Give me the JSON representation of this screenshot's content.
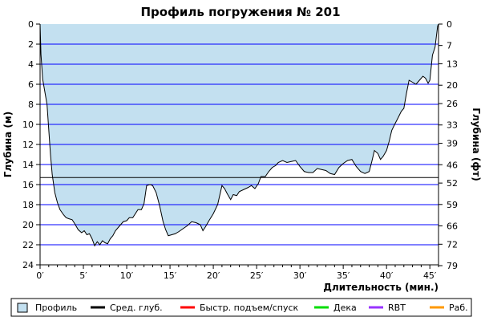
{
  "chart_data": {
    "type": "area",
    "title": "Профиль погружения № 201",
    "xlabel": "Длительность (мин.)",
    "ylabel_left": "Глубина (м)",
    "ylabel_right": "Глубина (фт)",
    "xlim": [
      0,
      46
    ],
    "ylim_m": [
      0,
      24
    ],
    "y_inverted": true,
    "grid": true,
    "legend_position": "bottom",
    "x_ticks": [
      0,
      5,
      10,
      15,
      20,
      25,
      30,
      35,
      40,
      45
    ],
    "x_tick_labels": [
      "0′",
      "5′",
      "10′",
      "15′",
      "20′",
      "25′",
      "30′",
      "35′",
      "40′",
      "45′"
    ],
    "y_left_ticks": [
      0,
      2,
      4,
      6,
      8,
      10,
      12,
      14,
      16,
      18,
      20,
      22,
      24
    ],
    "y_left_tick_labels": [
      "0",
      "2",
      "4",
      "6",
      "8",
      "10",
      "12",
      "14",
      "16",
      "18",
      "20",
      "22",
      "24"
    ],
    "y_right_ticks_ft": [
      0,
      7,
      13,
      20,
      26,
      33,
      39,
      46,
      52,
      59,
      66,
      72,
      79
    ],
    "y_right_tick_labels": [
      "0",
      "7",
      "13",
      "20",
      "26",
      "33",
      "39",
      "46",
      "52",
      "59",
      "66",
      "72",
      "79"
    ],
    "average_depth_m": 15.3,
    "series": [
      {
        "name": "Профиль",
        "color": "#c3e0f0",
        "line_color": "#000000",
        "points": [
          [
            0.0,
            0.0
          ],
          [
            0.1,
            3.0
          ],
          [
            0.3,
            5.5
          ],
          [
            0.6,
            7.0
          ],
          [
            0.8,
            8.0
          ],
          [
            1.0,
            10.5
          ],
          [
            1.2,
            13.0
          ],
          [
            1.4,
            15.0
          ],
          [
            1.7,
            16.8
          ],
          [
            2.0,
            17.8
          ],
          [
            2.3,
            18.5
          ],
          [
            2.7,
            19.0
          ],
          [
            3.0,
            19.3
          ],
          [
            3.3,
            19.4
          ],
          [
            3.7,
            19.5
          ],
          [
            4.0,
            19.9
          ],
          [
            4.4,
            20.5
          ],
          [
            4.8,
            20.8
          ],
          [
            5.1,
            20.6
          ],
          [
            5.4,
            21.0
          ],
          [
            5.7,
            20.9
          ],
          [
            6.0,
            21.4
          ],
          [
            6.3,
            22.1
          ],
          [
            6.6,
            21.7
          ],
          [
            6.9,
            22.0
          ],
          [
            7.2,
            21.6
          ],
          [
            7.5,
            21.8
          ],
          [
            7.8,
            21.9
          ],
          [
            8.1,
            21.4
          ],
          [
            8.4,
            21.1
          ],
          [
            8.7,
            20.6
          ],
          [
            9.0,
            20.3
          ],
          [
            9.3,
            20.0
          ],
          [
            9.6,
            19.7
          ],
          [
            10.0,
            19.6
          ],
          [
            10.3,
            19.3
          ],
          [
            10.7,
            19.3
          ],
          [
            11.0,
            18.9
          ],
          [
            11.3,
            18.5
          ],
          [
            11.7,
            18.5
          ],
          [
            12.0,
            17.9
          ],
          [
            12.3,
            16.1
          ],
          [
            12.7,
            16.0
          ],
          [
            13.0,
            16.1
          ],
          [
            13.4,
            16.8
          ],
          [
            13.8,
            18.1
          ],
          [
            14.2,
            19.7
          ],
          [
            14.5,
            20.5
          ],
          [
            14.8,
            21.1
          ],
          [
            15.2,
            21.0
          ],
          [
            15.6,
            20.9
          ],
          [
            16.0,
            20.7
          ],
          [
            16.5,
            20.4
          ],
          [
            17.0,
            20.1
          ],
          [
            17.5,
            19.7
          ],
          [
            18.0,
            19.8
          ],
          [
            18.5,
            20.0
          ],
          [
            18.8,
            20.6
          ],
          [
            19.1,
            20.2
          ],
          [
            19.5,
            19.6
          ],
          [
            20.0,
            18.9
          ],
          [
            20.5,
            18.0
          ],
          [
            21.0,
            16.1
          ],
          [
            21.3,
            16.4
          ],
          [
            21.6,
            16.9
          ],
          [
            22.0,
            17.5
          ],
          [
            22.3,
            17.0
          ],
          [
            22.7,
            17.1
          ],
          [
            23.0,
            16.7
          ],
          [
            23.5,
            16.5
          ],
          [
            24.0,
            16.3
          ],
          [
            24.4,
            16.1
          ],
          [
            24.8,
            16.4
          ],
          [
            25.2,
            15.9
          ],
          [
            25.5,
            15.2
          ],
          [
            26.0,
            15.2
          ],
          [
            26.4,
            14.7
          ],
          [
            26.8,
            14.3
          ],
          [
            27.2,
            14.1
          ],
          [
            27.5,
            13.8
          ],
          [
            28.0,
            13.6
          ],
          [
            28.5,
            13.8
          ],
          [
            29.0,
            13.7
          ],
          [
            29.5,
            13.6
          ],
          [
            30.0,
            14.2
          ],
          [
            30.5,
            14.7
          ],
          [
            31.0,
            14.8
          ],
          [
            31.5,
            14.8
          ],
          [
            32.0,
            14.4
          ],
          [
            32.5,
            14.5
          ],
          [
            33.0,
            14.6
          ],
          [
            33.5,
            14.9
          ],
          [
            34.0,
            15.0
          ],
          [
            34.5,
            14.3
          ],
          [
            35.0,
            13.9
          ],
          [
            35.5,
            13.6
          ],
          [
            36.0,
            13.5
          ],
          [
            36.5,
            14.2
          ],
          [
            37.0,
            14.7
          ],
          [
            37.5,
            14.9
          ],
          [
            38.0,
            14.7
          ],
          [
            38.3,
            13.7
          ],
          [
            38.6,
            12.6
          ],
          [
            39.0,
            12.9
          ],
          [
            39.3,
            13.5
          ],
          [
            39.6,
            13.2
          ],
          [
            40.0,
            12.6
          ],
          [
            40.3,
            11.7
          ],
          [
            40.6,
            10.6
          ],
          [
            41.0,
            9.9
          ],
          [
            41.3,
            9.4
          ],
          [
            41.7,
            8.7
          ],
          [
            42.0,
            8.4
          ],
          [
            42.3,
            6.9
          ],
          [
            42.6,
            5.6
          ],
          [
            43.0,
            5.8
          ],
          [
            43.4,
            6.0
          ],
          [
            43.8,
            5.6
          ],
          [
            44.2,
            5.2
          ],
          [
            44.5,
            5.4
          ],
          [
            44.8,
            5.9
          ],
          [
            45.0,
            5.6
          ],
          [
            45.3,
            3.1
          ],
          [
            45.6,
            2.3
          ],
          [
            45.9,
            0.2
          ],
          [
            46.0,
            0.0
          ]
        ]
      }
    ],
    "reference_line": {
      "name": "Сред. глуб.",
      "value_m": 15.3,
      "color": "#000000"
    }
  },
  "legend": {
    "items": [
      {
        "label": "Профиль",
        "color": "#c3e0f0",
        "kind": "box"
      },
      {
        "label": "Сред. глуб.",
        "color": "#000000",
        "kind": "line"
      },
      {
        "label": "Быстр. подъем/спуск",
        "color": "#ff0000",
        "kind": "line"
      },
      {
        "label": "Дека",
        "color": "#00dd00",
        "kind": "line"
      },
      {
        "label": "RBT",
        "color": "#9933ff",
        "kind": "line"
      },
      {
        "label": "Раб.",
        "color": "#ff9900",
        "kind": "line"
      }
    ]
  },
  "colors": {
    "grid": "#0000ff",
    "area_fill": "#c3e0f0",
    "profile_line": "#000000",
    "average_line": "#000000"
  }
}
